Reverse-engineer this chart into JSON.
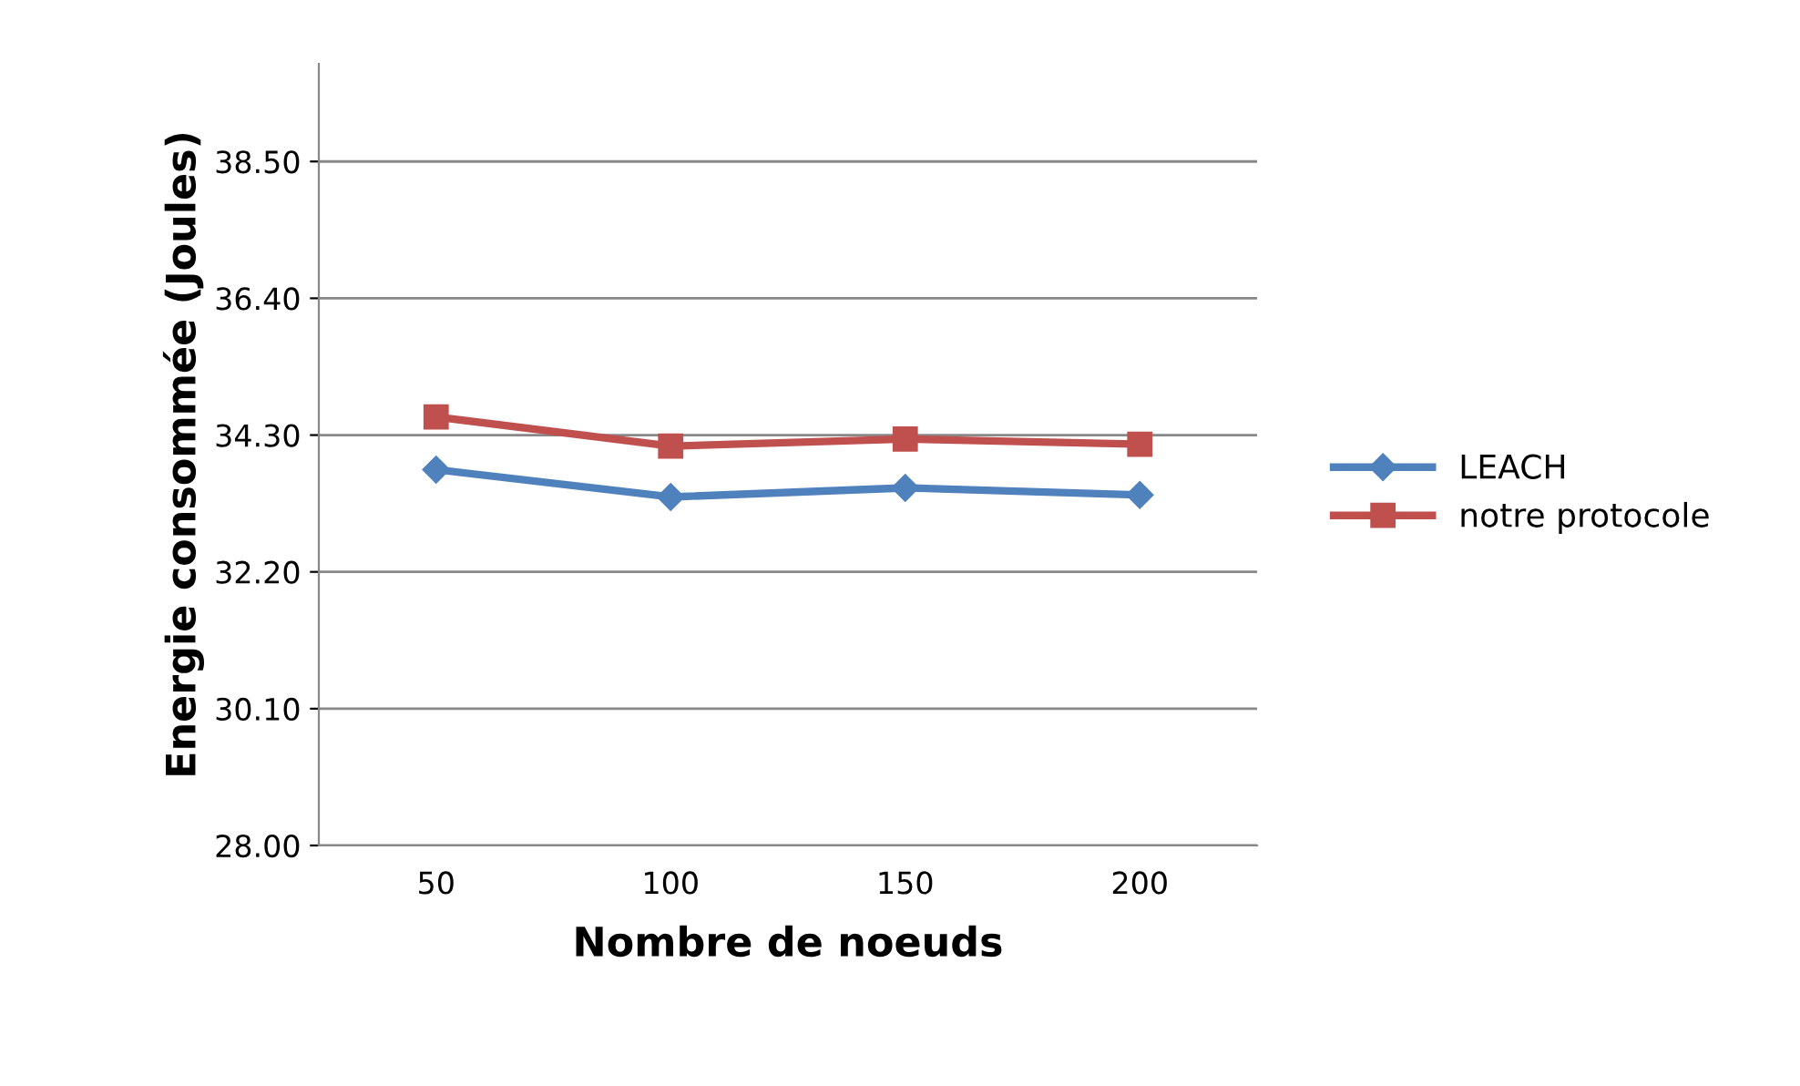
{
  "chart_data": {
    "type": "line",
    "xlabel": "Nombre de noeuds",
    "ylabel": "Energie consommée (Joules)",
    "categories": [
      "50",
      "100",
      "150",
      "200"
    ],
    "series": [
      {
        "name": "LEACH",
        "color": "#4f81bd",
        "values": [
          33.77,
          33.35,
          33.49,
          33.38
        ],
        "marker": "diamond"
      },
      {
        "name": "notre protocole",
        "color": "#c0504d",
        "values": [
          34.58,
          34.13,
          34.24,
          34.16
        ],
        "marker": "square"
      }
    ],
    "ylim": [
      28,
      40
    ],
    "yticks": [
      {
        "value": 28,
        "label": "28.00"
      },
      {
        "value": 30.1,
        "label": "30.10"
      },
      {
        "value": 32.2,
        "label": "32.20"
      },
      {
        "value": 34.3,
        "label": "34.30"
      },
      {
        "value": 36.4,
        "label": "36.40"
      },
      {
        "value": 38.5,
        "label": "38.50"
      }
    ],
    "grid": "y",
    "legend": "right",
    "line_style": "solid"
  }
}
